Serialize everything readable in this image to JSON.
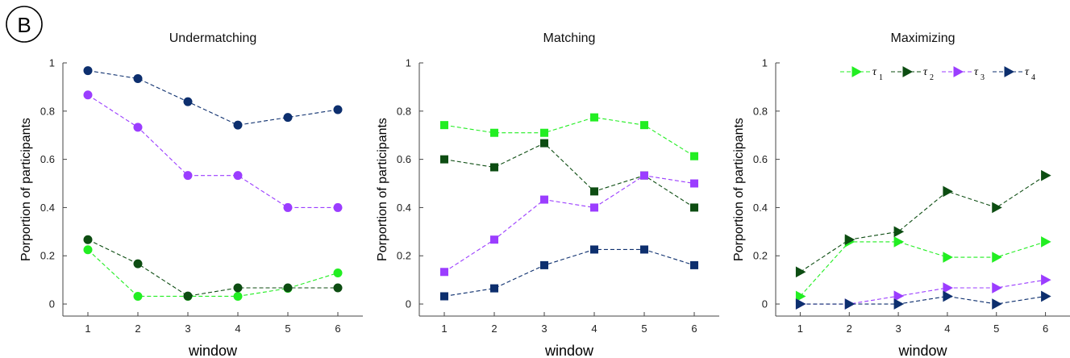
{
  "panel_label": "B",
  "colors": {
    "tau1": "#22ee22",
    "tau2": "#0d4d12",
    "tau3": "#9b3dff",
    "tau4": "#0d2f6e"
  },
  "legend": {
    "placement": "top-right",
    "entries": [
      {
        "symbol": "τ",
        "sub": "1"
      },
      {
        "symbol": "τ",
        "sub": "2"
      },
      {
        "symbol": "τ",
        "sub": "3"
      },
      {
        "symbol": "τ",
        "sub": "4"
      }
    ]
  },
  "chart_data": [
    {
      "type": "line",
      "title": "Undermatching",
      "xlabel": "window",
      "ylabel": "Porportion of participants",
      "xlim": [
        0.5,
        6.5
      ],
      "ylim": [
        -0.05,
        1
      ],
      "x": [
        1,
        2,
        3,
        4,
        5,
        6
      ],
      "yticks": [
        "0",
        "0.2",
        "0.4",
        "0.6",
        "0.8",
        "1"
      ],
      "xticks": [
        "1",
        "2",
        "3",
        "4",
        "5",
        "6"
      ],
      "marker": "circle",
      "grid": false,
      "series": [
        {
          "key": "tau1",
          "values": [
            0.225,
            0.032,
            0.032,
            0.032,
            0.065,
            0.129
          ]
        },
        {
          "key": "tau2",
          "values": [
            0.267,
            0.167,
            0.033,
            0.067,
            0.067,
            0.067
          ]
        },
        {
          "key": "tau3",
          "values": [
            0.867,
            0.733,
            0.533,
            0.533,
            0.4,
            0.4
          ]
        },
        {
          "key": "tau4",
          "values": [
            0.968,
            0.935,
            0.839,
            0.742,
            0.774,
            0.806
          ]
        }
      ]
    },
    {
      "type": "line",
      "title": "Matching",
      "xlabel": "window",
      "ylabel": "Porportion of participants",
      "xlim": [
        0.5,
        6.5
      ],
      "ylim": [
        -0.05,
        1
      ],
      "x": [
        1,
        2,
        3,
        4,
        5,
        6
      ],
      "yticks": [
        "0",
        "0.2",
        "0.4",
        "0.6",
        "0.8",
        "1"
      ],
      "xticks": [
        "1",
        "2",
        "3",
        "4",
        "5",
        "6"
      ],
      "marker": "square",
      "grid": false,
      "series": [
        {
          "key": "tau1",
          "values": [
            0.742,
            0.71,
            0.71,
            0.774,
            0.742,
            0.613
          ]
        },
        {
          "key": "tau2",
          "values": [
            0.6,
            0.567,
            0.667,
            0.467,
            0.533,
            0.4
          ]
        },
        {
          "key": "tau3",
          "values": [
            0.133,
            0.267,
            0.433,
            0.4,
            0.533,
            0.5
          ]
        },
        {
          "key": "tau4",
          "values": [
            0.032,
            0.065,
            0.161,
            0.226,
            0.226,
            0.161
          ]
        }
      ]
    },
    {
      "type": "line",
      "title": "Maximizing",
      "xlabel": "window",
      "ylabel": "Porportion of participants",
      "xlim": [
        0.5,
        6.5
      ],
      "ylim": [
        -0.05,
        1
      ],
      "x": [
        1,
        2,
        3,
        4,
        5,
        6
      ],
      "yticks": [
        "0",
        "0.2",
        "0.4",
        "0.6",
        "0.8",
        "1"
      ],
      "xticks": [
        "1",
        "2",
        "3",
        "4",
        "5",
        "6"
      ],
      "marker": "triangle-right",
      "grid": false,
      "series": [
        {
          "key": "tau1",
          "values": [
            0.032,
            0.258,
            0.258,
            0.194,
            0.194,
            0.258
          ]
        },
        {
          "key": "tau2",
          "values": [
            0.133,
            0.267,
            0.3,
            0.467,
            0.4,
            0.533
          ]
        },
        {
          "key": "tau3",
          "values": [
            0.0,
            0.0,
            0.033,
            0.067,
            0.067,
            0.1
          ]
        },
        {
          "key": "tau4",
          "values": [
            0.0,
            0.0,
            0.0,
            0.032,
            0.0,
            0.032
          ]
        }
      ]
    }
  ]
}
